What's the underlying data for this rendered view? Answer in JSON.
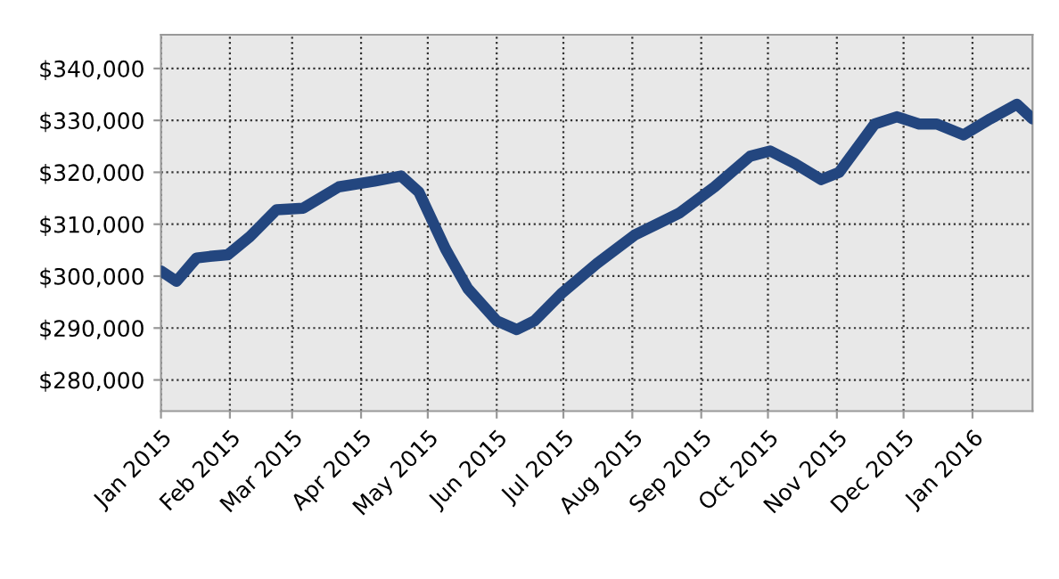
{
  "chart_data": {
    "type": "line",
    "x": [
      "2015-01-01",
      "2015-01-08",
      "2015-01-17",
      "2015-01-23",
      "2015-01-31",
      "2015-02-10",
      "2015-02-22",
      "2015-03-06",
      "2015-03-22",
      "2015-04-07",
      "2015-04-19",
      "2015-04-27",
      "2015-05-09",
      "2015-05-19",
      "2015-06-01",
      "2015-06-10",
      "2015-06-18",
      "2015-06-30",
      "2015-07-16",
      "2015-08-02",
      "2015-08-22",
      "2015-09-07",
      "2015-09-23",
      "2015-10-02",
      "2015-10-13",
      "2015-10-25",
      "2015-11-02",
      "2015-11-18",
      "2015-11-28",
      "2015-12-08",
      "2015-12-16",
      "2015-12-28",
      "2016-01-09",
      "2016-01-21",
      "2016-01-28"
    ],
    "series": [
      {
        "color": "#23467f",
        "values": [
          301000,
          299000,
          303500,
          303800,
          304100,
          307600,
          312800,
          313100,
          317200,
          318300,
          319300,
          316200,
          305200,
          297600,
          291400,
          289700,
          291400,
          296600,
          302400,
          307900,
          312100,
          317200,
          323100,
          324100,
          321700,
          318600,
          320000,
          329300,
          330700,
          329300,
          329300,
          327200,
          330300,
          333100,
          330300
        ]
      }
    ],
    "xlim": [
      "2015-01-01",
      "2016-01-28"
    ],
    "ylim": [
      274000,
      346500
    ],
    "xticks": [
      {
        "value": "2015-01-01",
        "label": "Jan 2015"
      },
      {
        "value": "2015-02-01",
        "label": "Feb 2015"
      },
      {
        "value": "2015-03-01",
        "label": "Mar 2015"
      },
      {
        "value": "2015-04-01",
        "label": "Apr 2015"
      },
      {
        "value": "2015-05-01",
        "label": "May 2015"
      },
      {
        "value": "2015-06-01",
        "label": "Jun 2015"
      },
      {
        "value": "2015-07-01",
        "label": "Jul 2015"
      },
      {
        "value": "2015-08-01",
        "label": "Aug 2015"
      },
      {
        "value": "2015-09-01",
        "label": "Sep 2015"
      },
      {
        "value": "2015-10-01",
        "label": "Oct 2015"
      },
      {
        "value": "2015-11-01",
        "label": "Nov 2015"
      },
      {
        "value": "2015-12-01",
        "label": "Dec 2015"
      },
      {
        "value": "2016-01-01",
        "label": "Jan 2016"
      }
    ],
    "yticks": [
      {
        "value": 280000,
        "label": "$280,000"
      },
      {
        "value": 290000,
        "label": "$290,000"
      },
      {
        "value": 300000,
        "label": "$300,000"
      },
      {
        "value": 310000,
        "label": "$310,000"
      },
      {
        "value": 320000,
        "label": "$320,000"
      },
      {
        "value": 330000,
        "label": "$330,000"
      },
      {
        "value": 340000,
        "label": "$340,000"
      }
    ],
    "grid": true,
    "line_style": "solid",
    "marker": "none"
  }
}
